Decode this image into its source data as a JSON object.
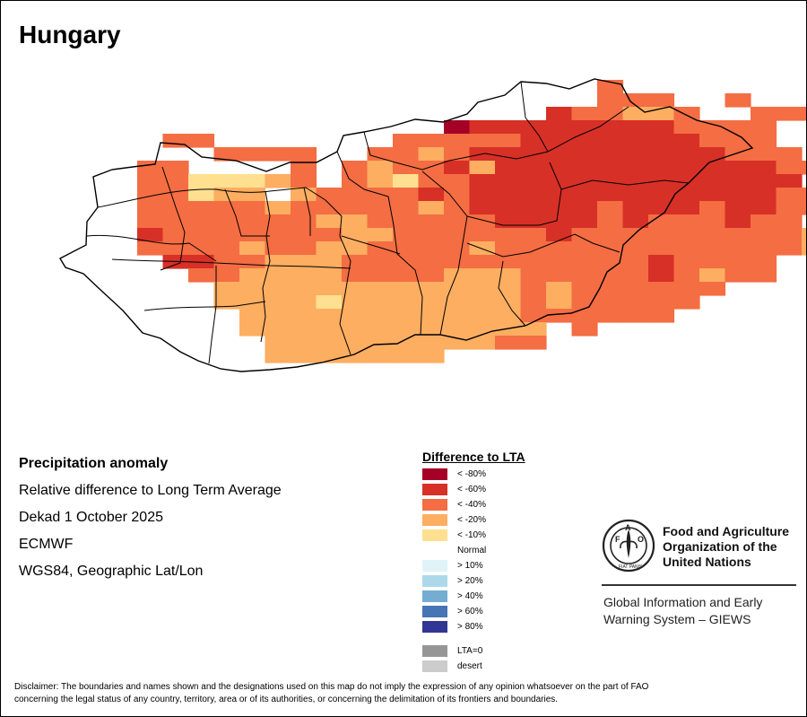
{
  "title": "Hungary",
  "info": {
    "heading": "Precipitation anomaly",
    "line1": "Relative difference to Long Term Average",
    "line2": "Dekad 1 October 2025",
    "line3": "ECMWF",
    "line4": "WGS84, Geographic Lat/Lon"
  },
  "legend": {
    "title": "Difference to LTA",
    "items": [
      {
        "label": "< -80%",
        "color": "#a50026"
      },
      {
        "label": "< -60%",
        "color": "#d73027"
      },
      {
        "label": "< -40%",
        "color": "#f46d43"
      },
      {
        "label": "< -20%",
        "color": "#fdae61"
      },
      {
        "label": "< -10%",
        "color": "#fee090"
      },
      {
        "label": "Normal",
        "color": "#ffffff"
      },
      {
        "label": "> 10%",
        "color": "#e0f3f8"
      },
      {
        "label": "> 20%",
        "color": "#abd9e9"
      },
      {
        "label": "> 40%",
        "color": "#74add1"
      },
      {
        "label": "> 60%",
        "color": "#4575b4"
      },
      {
        "label": "> 80%",
        "color": "#313695"
      },
      {
        "label": "LTA=0",
        "color": "#969696"
      },
      {
        "label": "desert",
        "color": "#cccccc"
      }
    ]
  },
  "fao": {
    "name_line1": "Food and Agriculture",
    "name_line2": "Organization of the",
    "name_line3": "United Nations",
    "logo_text": "FAO",
    "logo_motto": "FIAT PANIS",
    "giews_line1": "Global Information and Early",
    "giews_line2": "Warning System – GIEWS"
  },
  "disclaimer_line1": "Disclaimer: The boundaries and names shown and the designations used on this map do not imply the expression of any opinion whatsoever on the part of FAO",
  "disclaimer_line2": "concerning the legal status of any country, territory, area or of its authorities, or concerning the delimitation of its frontiers and boundaries.",
  "map_grid": [
    "....................cfff........",
    "................... cccffc ......",
    "..................bccddcffccc....",
    "..............abbbbbbbbcccc.....",
    "...cc.......cccccbbbbbbbccc.....",
    "...ffcccc..ccdcbbbbbbbbbbccc....",
    "..ccffffcfcdccbdbbbbbbbbbbbcc...",
    "..cceeedcfcdeccbbbbbbbbbbbbbf...",
    "..ccedd dccccbcbbbbbbbbbbbbcc...",
    "..cccccdcccccdcbbbbbcbbbcbbcc...",
    "..cccccccddcccccbbbbcbcccbcc....",
    "..bcccccccddccccccbcccccccccd...",
    "..ccccdccddccccdccccccccccccd...",
    "...bbccdddccccccccccccbcccc.....",
    "....ccddddccccdddcccccbcdcc.....",
    ".....ddddddddddddcdcccccc.......",
    ".....ddddedddddddcdccccc........",
    "......dddddddddddcccccc.........",
    "......dddddddddddd.c............",
    ".......dddddddddcc..............",
    ".......ddddddd...................",
    "................................"
  ]
}
